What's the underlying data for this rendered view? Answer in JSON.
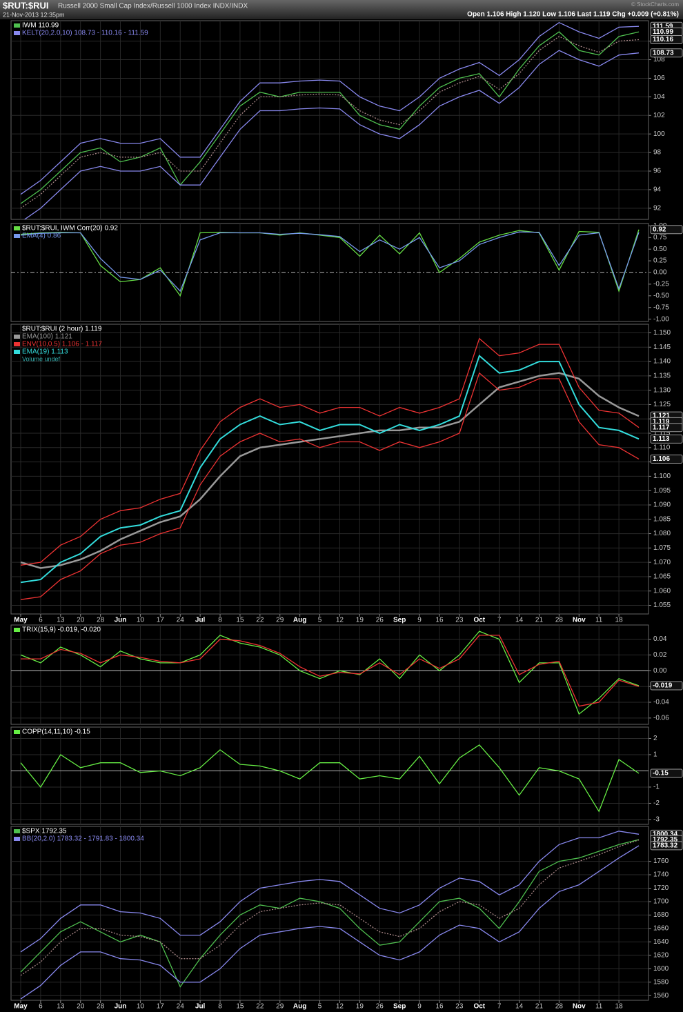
{
  "header": {
    "symbol": "$RUT:$RUI",
    "description": "Russell 2000 Small Cap Index/Russell 1000 Index  INDX/INDX",
    "date": "21-Nov-2013 12:35pm",
    "quote": "Open 1.106  High 1.120  Low 1.106  Last 1.119  Chg +0.009 (+0.81%)",
    "credit": "© StockCharts.com"
  },
  "x_axis": {
    "categories": [
      "May",
      "6",
      "13",
      "20",
      "28",
      "Jun",
      "10",
      "17",
      "24",
      "Jul",
      "8",
      "15",
      "22",
      "29",
      "Aug",
      "5",
      "12",
      "19",
      "26",
      "Sep",
      "9",
      "16",
      "23",
      "Oct",
      "7",
      "14",
      "21",
      "28",
      "Nov",
      "11",
      "18",
      null
    ]
  },
  "chart_data": [
    {
      "type": "line",
      "ylim": [
        90.8,
        112.2
      ],
      "yticks": [
        92,
        94,
        96,
        98,
        100,
        102,
        104,
        106,
        108,
        110
      ],
      "grid": true,
      "tags": [
        111.59,
        110.99,
        110.16,
        108.73
      ],
      "series": [
        {
          "name": "IWM  110.99",
          "color": "#4fc04f",
          "values": [
            92.5,
            94,
            96,
            98,
            98.5,
            97,
            97.5,
            98.5,
            94.5,
            97,
            100,
            103,
            104.5,
            104,
            104.5,
            104.5,
            104.5,
            102,
            101,
            100.5,
            103,
            105,
            106,
            106.5,
            104,
            107,
            109.5,
            111,
            109,
            108.5,
            110.5,
            110.99
          ]
        },
        {
          "name": "KELT(20,2.0,10) 108.73 - 110.16 - 111.59",
          "color": "#8888ee",
          "values": [
            93.5,
            95,
            97,
            99,
            99.5,
            99,
            99,
            99.5,
            97.5,
            97.5,
            100.5,
            103.5,
            105.5,
            105.5,
            105.7,
            105.8,
            105.7,
            104,
            103,
            102.5,
            104,
            106,
            107,
            107.7,
            106.3,
            108,
            110.5,
            112,
            111,
            110.3,
            111.5,
            111.59
          ]
        },
        {
          "color": "#aa8888",
          "dashed": true,
          "values": [
            92,
            93.5,
            95.5,
            97.5,
            98,
            97.5,
            97.5,
            98,
            96,
            96,
            99,
            102,
            104,
            104,
            104.2,
            104.3,
            104.2,
            102.5,
            101.5,
            101,
            102.5,
            104.5,
            105.5,
            106.2,
            104.8,
            106.5,
            109,
            110.5,
            109.5,
            108.8,
            110,
            110.16
          ]
        },
        {
          "color": "#8888ee",
          "values": [
            90.5,
            92,
            94,
            96,
            96.5,
            96,
            96,
            96.5,
            94.5,
            94.5,
            97.5,
            100.5,
            102.5,
            102.5,
            102.7,
            102.8,
            102.7,
            101,
            100,
            99.5,
            101,
            103,
            104,
            104.7,
            103.3,
            105,
            107.5,
            109,
            108,
            107.3,
            108.5,
            108.73
          ]
        }
      ]
    },
    {
      "type": "line",
      "ylim": [
        -1.05,
        1.05
      ],
      "hline": 0,
      "hline_dashed": true,
      "grid": false,
      "yticks": [
        {
          "value": 1,
          "label": "1.00"
        },
        {
          "value": 0.75,
          "label": "0.75"
        },
        {
          "value": 0.5,
          "label": "0.50"
        },
        {
          "value": 0.25,
          "label": "0.25"
        },
        {
          "value": 0,
          "label": "0.00"
        },
        {
          "value": -0.25,
          "label": "-0.25"
        },
        {
          "value": -0.5,
          "label": "-0.50"
        },
        {
          "value": -0.75,
          "label": "-0.75"
        },
        {
          "value": -1,
          "label": "-1.00"
        }
      ],
      "tags": [
        0.92
      ],
      "series": [
        {
          "name": "$RUT:$RUI, IWM Corr(20) 0.92",
          "color": "#66dd44",
          "values": [
            0.82,
            0.85,
            0.86,
            0.85,
            0.15,
            -0.2,
            -0.15,
            0.1,
            -0.5,
            0.85,
            0.86,
            0.85,
            0.85,
            0.8,
            0.85,
            0.8,
            0.75,
            0.35,
            0.8,
            0.4,
            0.85,
            0,
            0.3,
            0.65,
            0.8,
            0.9,
            0.85,
            0.05,
            0.88,
            0.86,
            -0.4,
            0.92
          ]
        },
        {
          "name": "EMA(4) 0.86",
          "color": "#7799ee",
          "values": [
            0.8,
            0.84,
            0.85,
            0.85,
            0.3,
            -0.1,
            -0.15,
            0.05,
            -0.4,
            0.7,
            0.85,
            0.85,
            0.85,
            0.82,
            0.84,
            0.81,
            0.77,
            0.45,
            0.7,
            0.5,
            0.75,
            0.1,
            0.25,
            0.6,
            0.75,
            0.87,
            0.86,
            0.15,
            0.8,
            0.85,
            -0.35,
            0.86
          ]
        }
      ]
    },
    {
      "type": "line",
      "title": "$RUT:$RUI (2 hour) 1.119",
      "note": "Volume undef",
      "ylim": [
        1.052,
        1.153
      ],
      "grid": true,
      "xlabels": true,
      "yticks": [
        1.055,
        {
          "value": 1.06,
          "label": "1.060"
        },
        1.065,
        {
          "value": 1.07,
          "label": "1.070"
        },
        1.075,
        {
          "value": 1.08,
          "label": "1.080"
        },
        1.085,
        {
          "value": 1.09,
          "label": "1.090"
        },
        1.095,
        {
          "value": 1.1,
          "label": "1.100"
        },
        1.105,
        {
          "value": 1.11,
          "label": "1.110"
        },
        1.115,
        {
          "value": 1.12,
          "label": "1.120"
        },
        1.125,
        {
          "value": 1.13,
          "label": "1.130"
        },
        1.135,
        {
          "value": 1.14,
          "label": "1.140"
        },
        1.145,
        {
          "value": 1.15,
          "label": "1.150"
        }
      ],
      "tags": [
        1.121,
        1.119,
        1.117,
        1.113,
        1.106
      ],
      "series": [
        {
          "name": "EMA(100) 1.121",
          "color": "#999999",
          "width": 2.5,
          "values": [
            1.07,
            1.068,
            1.069,
            1.071,
            1.074,
            1.078,
            1.081,
            1.084,
            1.086,
            1.092,
            1.1,
            1.107,
            1.11,
            1.111,
            1.112,
            1.113,
            1.114,
            1.115,
            1.116,
            1.116,
            1.117,
            1.117,
            1.119,
            1.125,
            1.131,
            1.133,
            1.135,
            1.136,
            1.134,
            1.128,
            1.124,
            1.121
          ]
        },
        {
          "name": "ENV(10,0.5) 1.106 - 1.117",
          "color": "#ee3333",
          "values": [
            1.069,
            1.07,
            1.076,
            1.079,
            1.085,
            1.088,
            1.089,
            1.092,
            1.094,
            1.109,
            1.119,
            1.124,
            1.127,
            1.124,
            1.125,
            1.122,
            1.124,
            1.124,
            1.121,
            1.124,
            1.122,
            1.124,
            1.127,
            1.148,
            1.142,
            1.143,
            1.146,
            1.146,
            1.131,
            1.123,
            1.122,
            1.117
          ]
        },
        {
          "color": "#ee3333",
          "values": [
            1.057,
            1.058,
            1.064,
            1.067,
            1.073,
            1.076,
            1.077,
            1.08,
            1.082,
            1.097,
            1.107,
            1.112,
            1.115,
            1.112,
            1.113,
            1.11,
            1.112,
            1.112,
            1.109,
            1.112,
            1.11,
            1.112,
            1.115,
            1.136,
            1.13,
            1.131,
            1.134,
            1.134,
            1.119,
            1.111,
            1.11,
            1.106
          ]
        },
        {
          "name": "EMA(19) 1.113",
          "color": "#33dddd",
          "width": 2,
          "values": [
            1.063,
            1.064,
            1.07,
            1.073,
            1.079,
            1.082,
            1.083,
            1.086,
            1.088,
            1.103,
            1.113,
            1.118,
            1.121,
            1.118,
            1.119,
            1.116,
            1.118,
            1.118,
            1.115,
            1.118,
            1.116,
            1.118,
            1.121,
            1.142,
            1.136,
            1.137,
            1.14,
            1.14,
            1.125,
            1.117,
            1.116,
            1.113
          ]
        }
      ]
    },
    {
      "type": "line",
      "ylim": [
        -0.068,
        0.058
      ],
      "hline": 0,
      "grid": true,
      "yticks": [
        0.04,
        0.02,
        {
          "value": 0,
          "label": "0.00"
        },
        -0.02,
        -0.04,
        -0.06
      ],
      "tags": [
        -0.019
      ],
      "series": [
        {
          "name": "TRIX(15,9) -0.019, -0.020",
          "color": "#66ee44",
          "values": [
            0.02,
            0.01,
            0.03,
            0.02,
            0.005,
            0.025,
            0.015,
            0.01,
            0.01,
            0.02,
            0.045,
            0.035,
            0.03,
            0.02,
            0,
            -0.01,
            0,
            -0.005,
            0.015,
            -0.01,
            0.02,
            0,
            0.02,
            0.05,
            0.04,
            -0.015,
            0.01,
            0.01,
            -0.055,
            -0.035,
            -0.01,
            -0.019
          ]
        },
        {
          "color": "#ee3333",
          "values": [
            0.015,
            0.015,
            0.027,
            0.022,
            0.01,
            0.02,
            0.017,
            0.012,
            0.01,
            0.015,
            0.04,
            0.038,
            0.032,
            0.022,
            0.005,
            -0.007,
            -0.002,
            -0.004,
            0.01,
            -0.005,
            0.015,
            0.003,
            0.015,
            0.045,
            0.045,
            -0.005,
            0.008,
            0.012,
            -0.045,
            -0.04,
            -0.012,
            -0.02
          ]
        }
      ]
    },
    {
      "type": "line",
      "ylim": [
        -3.3,
        2.7
      ],
      "hline": 0,
      "grid": true,
      "yticks": [
        2,
        1,
        -1,
        -2,
        -3
      ],
      "tags": [
        -0.15
      ],
      "series": [
        {
          "name": "COPP(14,11,10) -0.15",
          "color": "#66ee44",
          "values": [
            0.5,
            -1,
            1,
            0.2,
            0.5,
            0.5,
            -0.1,
            0,
            -0.3,
            0.2,
            1.3,
            0.4,
            0.3,
            0,
            -0.5,
            0.5,
            0.5,
            -0.5,
            -0.3,
            -0.5,
            0.9,
            -0.8,
            0.8,
            1.6,
            0.2,
            -1.5,
            0.2,
            0,
            -0.5,
            -2.5,
            0.7,
            -0.15
          ]
        }
      ]
    },
    {
      "type": "line",
      "ylim": [
        1553,
        1812
      ],
      "grid": true,
      "xlabels": true,
      "yticks": [
        1560,
        1580,
        1600,
        1620,
        1640,
        1660,
        1680,
        1700,
        1720,
        1740,
        1760
      ],
      "tags": [
        1800.34,
        1792.35,
        1783.32
      ],
      "series": [
        {
          "name": "$SPX  1792.35",
          "color": "#4fc04f",
          "values": [
            1595,
            1625,
            1655,
            1670,
            1655,
            1640,
            1650,
            1640,
            1573,
            1615,
            1650,
            1680,
            1695,
            1690,
            1705,
            1700,
            1690,
            1660,
            1635,
            1640,
            1670,
            1700,
            1705,
            1690,
            1660,
            1700,
            1745,
            1760,
            1765,
            1775,
            1785,
            1792.35
          ]
        },
        {
          "name": "BB(20,2.0) 1783.32 - 1791.83 - 1800.34",
          "color": "#8888ee",
          "values": [
            1625,
            1645,
            1675,
            1695,
            1695,
            1685,
            1683,
            1675,
            1650,
            1650,
            1670,
            1700,
            1720,
            1725,
            1730,
            1733,
            1730,
            1710,
            1690,
            1683,
            1695,
            1720,
            1735,
            1730,
            1710,
            1725,
            1760,
            1785,
            1795,
            1795,
            1805,
            1800.34
          ]
        },
        {
          "color": "#aa8888",
          "dashed": true,
          "values": [
            1590,
            1610,
            1640,
            1660,
            1660,
            1650,
            1648,
            1640,
            1615,
            1615,
            1635,
            1665,
            1685,
            1690,
            1695,
            1698,
            1695,
            1675,
            1655,
            1648,
            1660,
            1685,
            1700,
            1695,
            1675,
            1690,
            1725,
            1750,
            1760,
            1770,
            1782,
            1791.83
          ]
        },
        {
          "color": "#8888ee",
          "values": [
            1555,
            1575,
            1605,
            1625,
            1625,
            1615,
            1613,
            1605,
            1580,
            1580,
            1600,
            1630,
            1650,
            1655,
            1660,
            1663,
            1660,
            1640,
            1620,
            1613,
            1625,
            1650,
            1665,
            1660,
            1640,
            1655,
            1690,
            1715,
            1725,
            1745,
            1765,
            1783.32
          ]
        }
      ]
    }
  ]
}
